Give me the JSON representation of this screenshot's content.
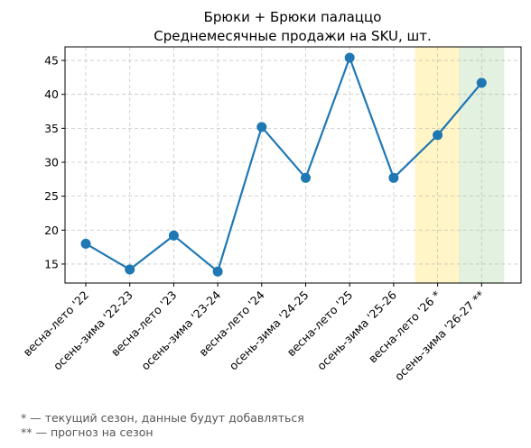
{
  "chart_data": {
    "type": "line",
    "title": "Брюки + Брюки палаццо",
    "subtitle": "Среднемесячные продажи на SKU, шт.",
    "xlabel": "",
    "ylabel": "",
    "categories": [
      "весна-лето '22",
      "осень-зима '22-23",
      "весна-лето '23",
      "осень-зима '23-24",
      "весна-лето '24",
      "осень-зима '24-25",
      "весна-лето '25",
      "осень-зима '25-26",
      "весна-лето '26 *",
      "осень-зима '26-27 **"
    ],
    "series": [
      {
        "values": [
          18.0,
          14.2,
          19.2,
          13.9,
          35.2,
          27.7,
          45.4,
          27.7,
          34.0,
          41.7
        ],
        "color": "#1f77b4"
      }
    ],
    "ylim": [
      12.2,
      47.0
    ],
    "yticks": [
      15,
      20,
      25,
      30,
      35,
      40,
      45
    ],
    "ytick_labels": [
      "15",
      "20",
      "25",
      "30",
      "35",
      "40",
      "45"
    ],
    "grid": true,
    "highlight_bands": [
      {
        "category_index": 8,
        "color": "#fff2b3",
        "meaning": "current-season"
      },
      {
        "category_index": 9,
        "color": "#d8ecd6",
        "meaning": "forecast"
      }
    ]
  },
  "footnotes": {
    "current_season": "* — текущий сезон, данные будут добавляться",
    "forecast": "** — прогноз на сезон"
  }
}
